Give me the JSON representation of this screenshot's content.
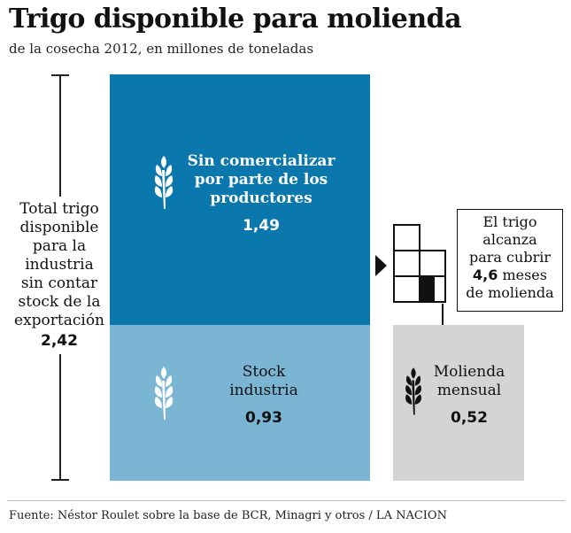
{
  "title": "Trigo disponible para molienda",
  "subtitle": "de la cosecha 2012, en millones de toneladas",
  "total": {
    "lines": [
      "Total trigo",
      "disponible",
      "para la",
      "industria",
      "sin contar",
      "stock de la",
      "exportación"
    ],
    "value": "2,42"
  },
  "chart_data": {
    "type": "bar",
    "unit": "millones de toneladas",
    "stacked_bar": [
      {
        "label": "Sin comercializar por parte de los productores",
        "value": 1.49,
        "value_label": "1,49",
        "color": "#0a77ad"
      },
      {
        "label": "Stock industria",
        "value": 0.93,
        "value_label": "0,93",
        "color": "#7bb5d4"
      }
    ],
    "comparison_bar": {
      "label": "Molienda mensual",
      "value": 0.52,
      "value_label": "0,52",
      "color": "#d4d4d4"
    },
    "total": 2.42
  },
  "segments": {
    "top": {
      "lines": [
        "Sin comercializar",
        "por parte de los",
        "productores"
      ],
      "value": "1,49"
    },
    "bottom": {
      "lines": [
        "Stock",
        "industria"
      ],
      "value": "0,93"
    },
    "right": {
      "lines": [
        "Molienda",
        "mensual"
      ],
      "value": "0,52"
    }
  },
  "callout": {
    "lines": [
      "El trigo",
      "alcanza",
      "para cubrir"
    ],
    "months_value": "4,6",
    "months_unit": " meses",
    "last_line": "de molienda"
  },
  "months_grid": {
    "full": 4,
    "partial": 0.6
  },
  "source": "Fuente:  Néstor Roulet sobre la base de BCR, Minagri y otros / LA NACION",
  "icons": [
    "wheat-icon"
  ]
}
